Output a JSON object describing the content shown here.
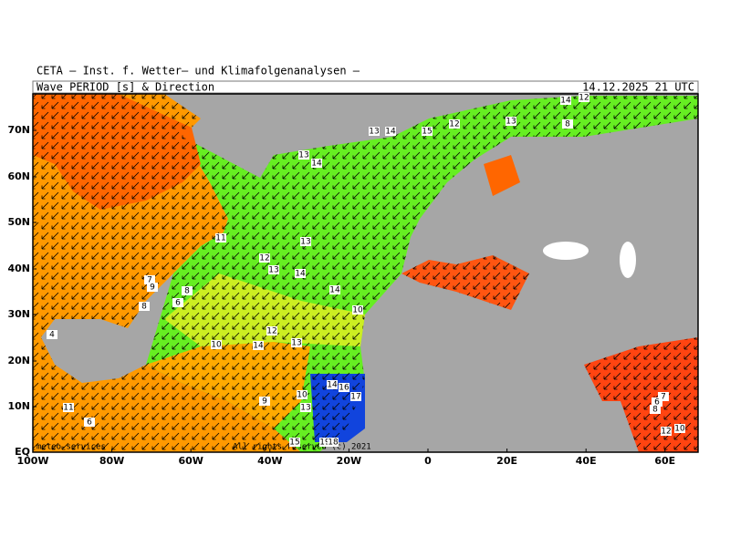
{
  "header": {
    "title": "CETA – Inst. f. Wetter– und Klimafolgenanalysen –",
    "subtitle": "Wave PERIOD [s] & Direction",
    "timestamp": "14.12.2025 21 UTC"
  },
  "map": {
    "lat_labels": [
      "70N",
      "60N",
      "50N",
      "40N",
      "30N",
      "20N",
      "10N",
      "EQ"
    ],
    "lon_labels": [
      "100W",
      "80W",
      "60W",
      "40W",
      "20W",
      "0",
      "20E",
      "40E",
      "60E"
    ],
    "period_labels": [
      "13",
      "14",
      "15",
      "12",
      "13",
      "14",
      "12",
      "8",
      "13",
      "14",
      "11",
      "12",
      "13",
      "13",
      "14",
      "14",
      "12",
      "14",
      "13",
      "10",
      "10",
      "9",
      "10",
      "13",
      "15",
      "19",
      "18",
      "14",
      "16",
      "17",
      "7",
      "9",
      "8",
      "6",
      "8",
      "4",
      "11",
      "6",
      "7",
      "6",
      "8",
      "12",
      "10"
    ],
    "credit_left": "meteo-services",
    "credit_right": "All rights reserved (c) 2021"
  }
}
